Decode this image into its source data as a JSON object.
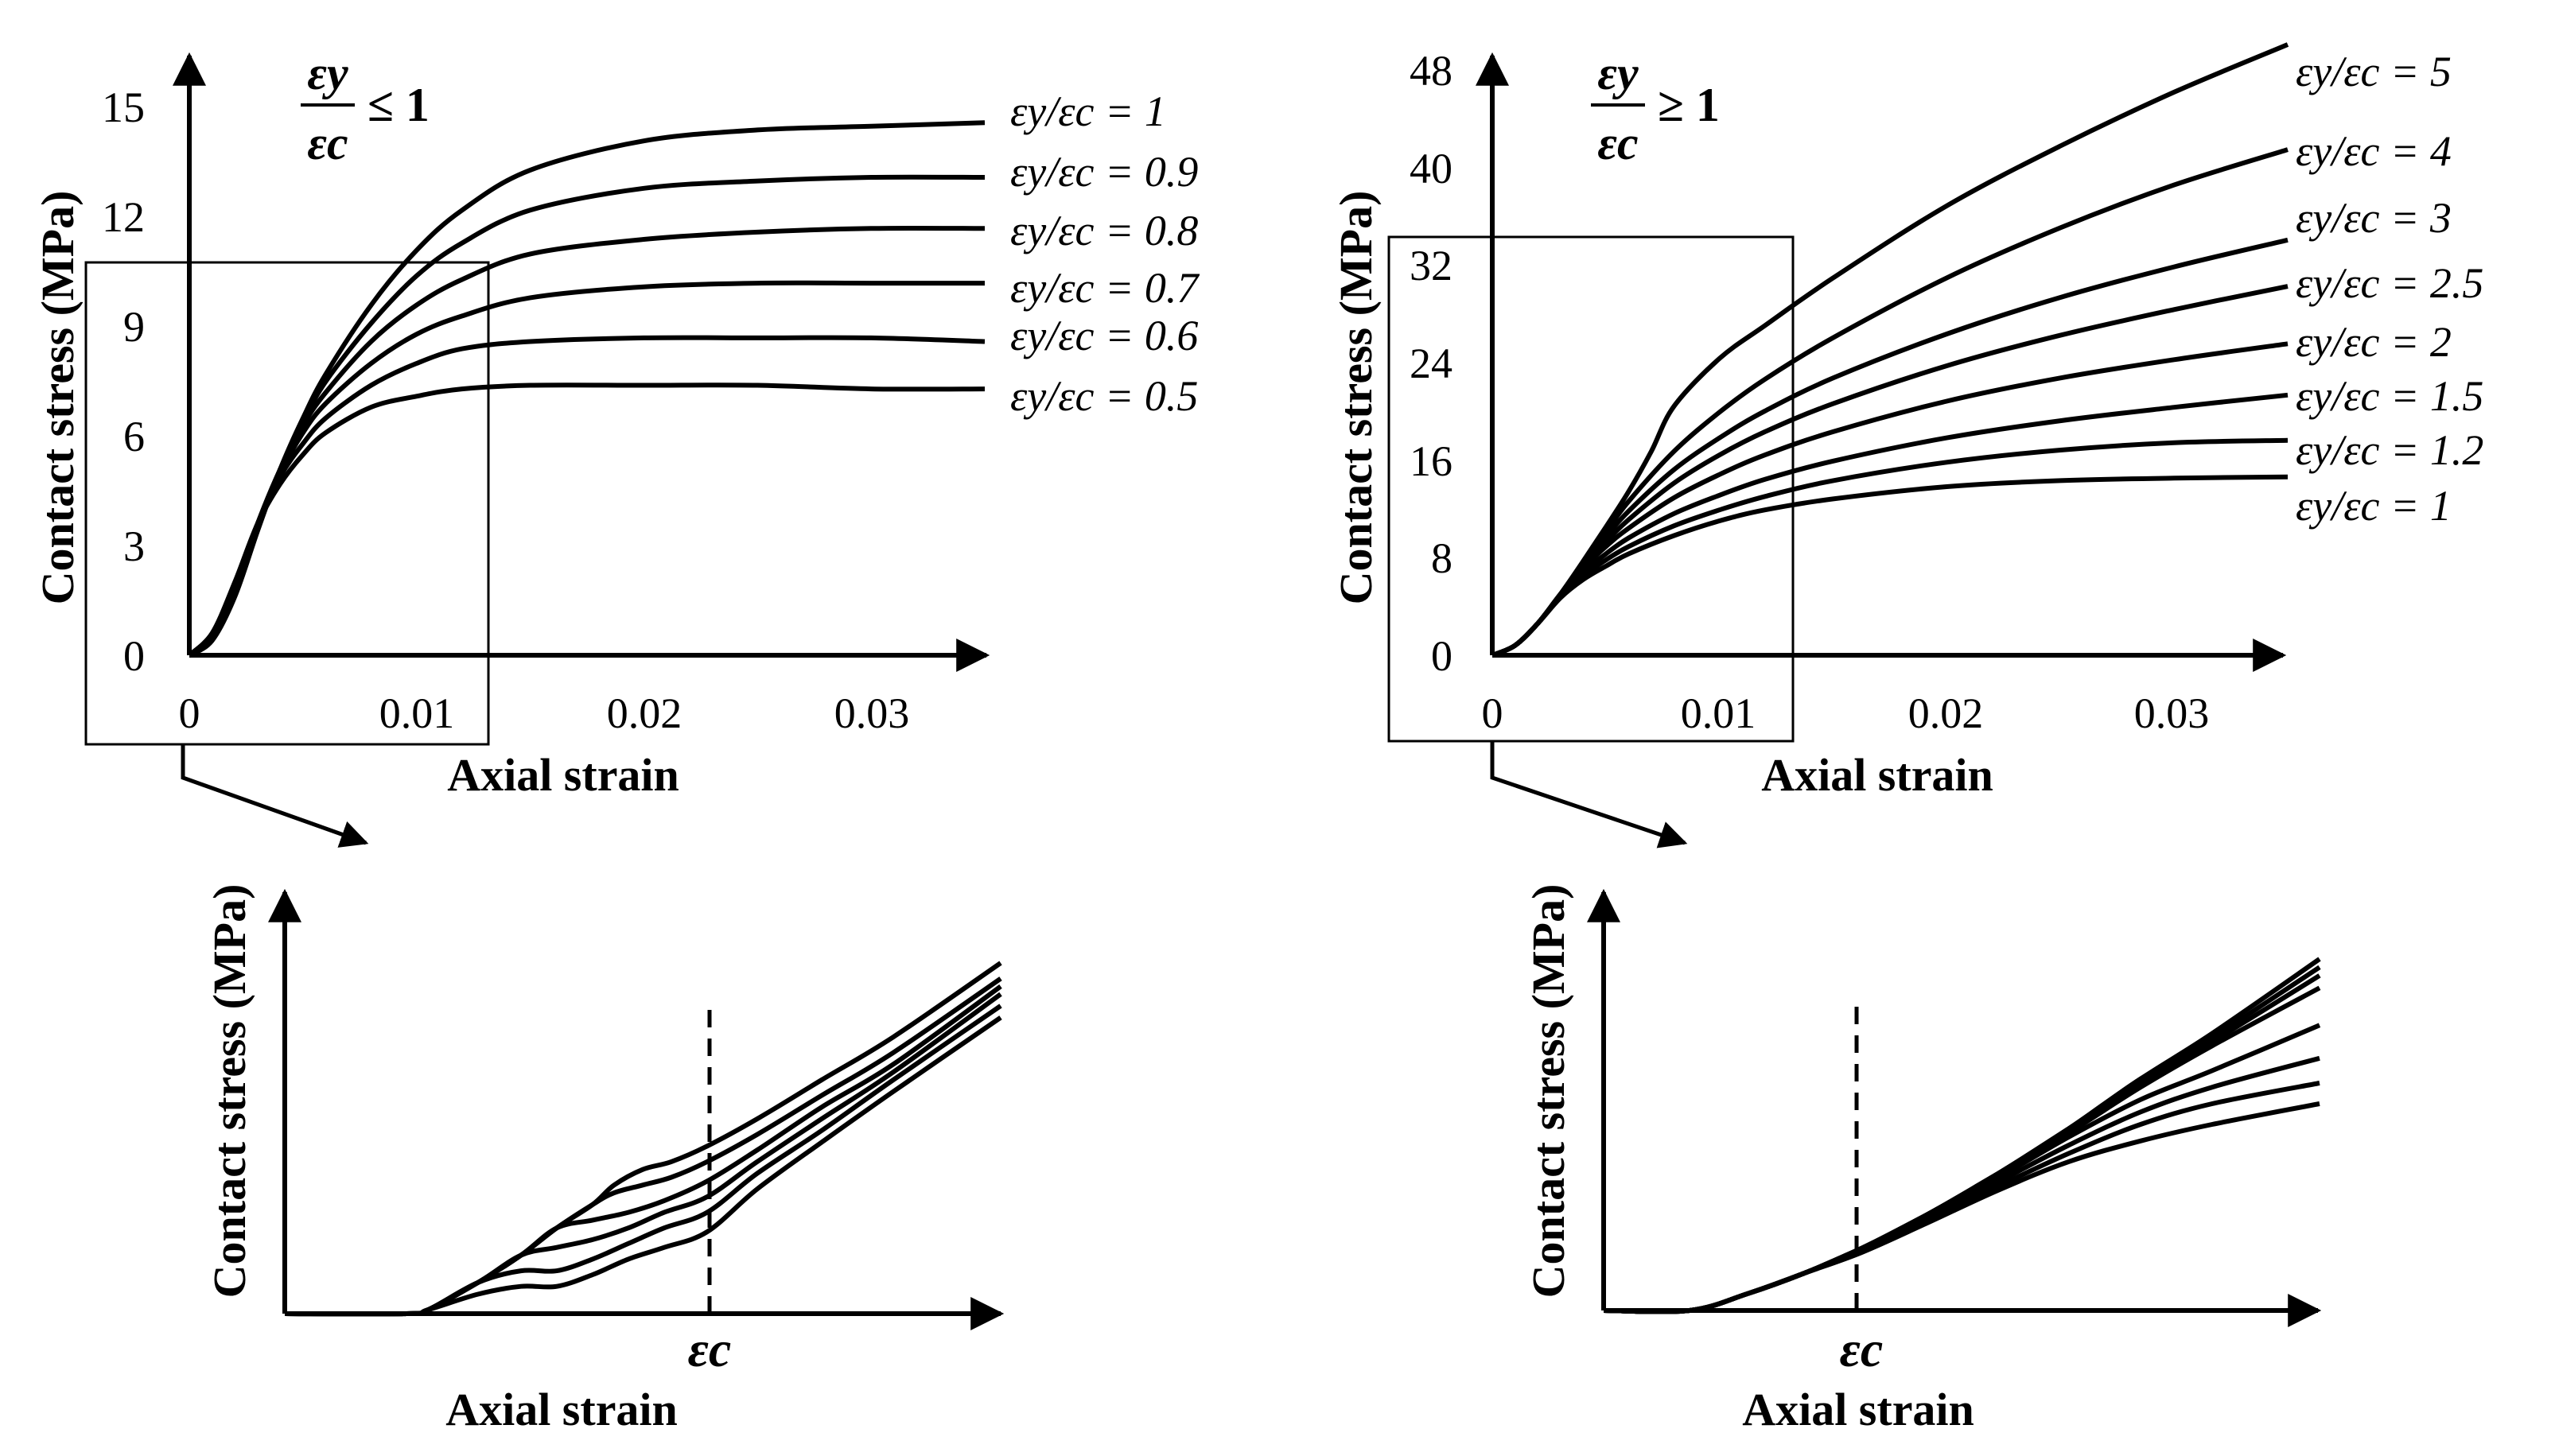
{
  "chart_data": [
    {
      "type": "line",
      "panel": "top-left",
      "title": "",
      "condition": {
        "numerator": "εy",
        "denominator": "εc",
        "relation": "≤ 1"
      },
      "xlabel": "Axial strain",
      "ylabel": "Contact stress (MPa)",
      "xlim": [
        0,
        0.035
      ],
      "ylim": [
        0,
        16
      ],
      "xticks": [
        0,
        0.01,
        0.02,
        0.03
      ],
      "xtick_labels": [
        "0",
        "0.01",
        "0.02",
        "0.03"
      ],
      "yticks": [
        0,
        3,
        6,
        9,
        12,
        15
      ],
      "ytick_labels": [
        "0",
        "3",
        "6",
        "9",
        "12",
        "15"
      ],
      "zoom_box": {
        "x": [
          -0.0045,
          0.013
        ],
        "y": [
          -2.4,
          10.8
        ]
      },
      "legend_placement": "right",
      "series": [
        {
          "name": "εy/εc = 1",
          "x": [
            0,
            0.001,
            0.002,
            0.003,
            0.004,
            0.005,
            0.006,
            0.008,
            0.01,
            0.012,
            0.015,
            0.02,
            0.025,
            0.03,
            0.035
          ],
          "y": [
            0,
            0.4,
            1.6,
            3.4,
            5.1,
            6.5,
            7.7,
            9.6,
            11.1,
            12.2,
            13.3,
            14.1,
            14.4,
            14.5,
            14.6
          ]
        },
        {
          "name": "εy/εc = 0.9",
          "x": [
            0,
            0.001,
            0.002,
            0.003,
            0.004,
            0.005,
            0.006,
            0.008,
            0.01,
            0.012,
            0.015,
            0.02,
            0.025,
            0.03,
            0.035
          ],
          "y": [
            0,
            0.5,
            1.7,
            3.5,
            5.1,
            6.4,
            7.5,
            9.1,
            10.4,
            11.3,
            12.2,
            12.8,
            13.0,
            13.1,
            13.1
          ]
        },
        {
          "name": "εy/εc = 0.8",
          "x": [
            0,
            0.001,
            0.002,
            0.003,
            0.004,
            0.005,
            0.006,
            0.008,
            0.01,
            0.012,
            0.015,
            0.02,
            0.025,
            0.03,
            0.035
          ],
          "y": [
            0,
            0.5,
            1.8,
            3.6,
            5.1,
            6.3,
            7.2,
            8.6,
            9.6,
            10.3,
            11.0,
            11.4,
            11.6,
            11.7,
            11.7
          ]
        },
        {
          "name": "εy/εc = 0.7",
          "x": [
            0,
            0.001,
            0.002,
            0.003,
            0.004,
            0.005,
            0.006,
            0.008,
            0.01,
            0.012,
            0.015,
            0.02,
            0.025,
            0.03,
            0.035
          ],
          "y": [
            0,
            0.5,
            1.8,
            3.6,
            5.0,
            6.1,
            6.9,
            8.0,
            8.8,
            9.3,
            9.8,
            10.1,
            10.2,
            10.2,
            10.2
          ]
        },
        {
          "name": "εy/εc = 0.6",
          "x": [
            0,
            0.001,
            0.002,
            0.003,
            0.004,
            0.005,
            0.006,
            0.008,
            0.01,
            0.012,
            0.015,
            0.02,
            0.025,
            0.03,
            0.035
          ],
          "y": [
            0,
            0.6,
            1.9,
            3.6,
            4.9,
            5.8,
            6.5,
            7.4,
            8.0,
            8.4,
            8.6,
            8.7,
            8.7,
            8.7,
            8.6
          ]
        },
        {
          "name": "εy/εc = 0.5",
          "x": [
            0,
            0.001,
            0.002,
            0.003,
            0.004,
            0.005,
            0.006,
            0.008,
            0.01,
            0.012,
            0.015,
            0.02,
            0.025,
            0.03,
            0.035
          ],
          "y": [
            0,
            0.6,
            2.0,
            3.6,
            4.7,
            5.5,
            6.1,
            6.8,
            7.1,
            7.3,
            7.4,
            7.4,
            7.4,
            7.3,
            7.3
          ]
        }
      ]
    },
    {
      "type": "line",
      "panel": "top-right",
      "title": "",
      "condition": {
        "numerator": "εy",
        "denominator": "εc",
        "relation": "≥ 1"
      },
      "xlabel": "Axial strain",
      "ylabel": "Contact stress (MPa)",
      "xlim": [
        0,
        0.035
      ],
      "ylim": [
        0,
        50
      ],
      "xticks": [
        0,
        0.01,
        0.02,
        0.03
      ],
      "xtick_labels": [
        "0",
        "0.01",
        "0.02",
        "0.03"
      ],
      "yticks": [
        0,
        8,
        16,
        24,
        32,
        40,
        48
      ],
      "ytick_labels": [
        "0",
        "8",
        "16",
        "24",
        "32",
        "40",
        "48"
      ],
      "zoom_box": {
        "x": [
          -0.0045,
          0.013
        ],
        "y": [
          -7.2,
          34.5
        ]
      },
      "legend_placement": "right",
      "series": [
        {
          "name": "εy/εc = 5",
          "x": [
            0,
            0.001,
            0.002,
            0.003,
            0.004,
            0.005,
            0.006,
            0.007,
            0.008,
            0.01,
            0.012,
            0.015,
            0.02,
            0.025,
            0.03,
            0.035
          ],
          "y": [
            0,
            0.8,
            2.6,
            5.0,
            7.7,
            10.5,
            13.4,
            16.7,
            20.4,
            24.3,
            27.0,
            30.9,
            36.8,
            41.7,
            46.1,
            50.0
          ]
        },
        {
          "name": "εy/εc = 4",
          "x": [
            0,
            0.001,
            0.002,
            0.003,
            0.004,
            0.005,
            0.006,
            0.008,
            0.01,
            0.012,
            0.015,
            0.02,
            0.025,
            0.03,
            0.035
          ],
          "y": [
            0,
            0.8,
            2.6,
            5.0,
            7.6,
            10.1,
            12.6,
            16.7,
            19.9,
            22.6,
            26.0,
            30.9,
            35.0,
            38.5,
            41.4
          ]
        },
        {
          "name": "εy/εc = 3",
          "x": [
            0,
            0.001,
            0.002,
            0.003,
            0.004,
            0.005,
            0.006,
            0.008,
            0.01,
            0.012,
            0.015,
            0.02,
            0.025,
            0.03,
            0.035
          ],
          "y": [
            0,
            0.8,
            2.6,
            5.0,
            7.4,
            9.7,
            11.8,
            15.2,
            17.8,
            20.0,
            22.7,
            26.3,
            29.3,
            31.8,
            34.0
          ]
        },
        {
          "name": "εy/εc = 2.5",
          "x": [
            0,
            0.001,
            0.002,
            0.003,
            0.004,
            0.005,
            0.006,
            0.008,
            0.01,
            0.012,
            0.015,
            0.02,
            0.025,
            0.03,
            0.035
          ],
          "y": [
            0,
            0.8,
            2.6,
            5.0,
            7.3,
            9.3,
            11.1,
            14.1,
            16.4,
            18.3,
            20.6,
            23.7,
            26.2,
            28.3,
            30.2
          ]
        },
        {
          "name": "εy/εc = 2",
          "x": [
            0,
            0.001,
            0.002,
            0.003,
            0.004,
            0.005,
            0.006,
            0.008,
            0.01,
            0.012,
            0.015,
            0.02,
            0.025,
            0.03,
            0.035
          ],
          "y": [
            0,
            0.8,
            2.6,
            5.0,
            7.1,
            8.9,
            10.4,
            12.9,
            14.8,
            16.4,
            18.3,
            20.8,
            22.7,
            24.2,
            25.5
          ]
        },
        {
          "name": "εy/εc = 1.5",
          "x": [
            0,
            0.001,
            0.002,
            0.003,
            0.004,
            0.005,
            0.006,
            0.008,
            0.01,
            0.012,
            0.015,
            0.02,
            0.025,
            0.03,
            0.035
          ],
          "y": [
            0,
            0.8,
            2.6,
            4.9,
            6.8,
            8.3,
            9.6,
            11.6,
            13.1,
            14.4,
            15.9,
            17.8,
            19.2,
            20.3,
            21.3
          ]
        },
        {
          "name": "εy/εc = 1.2",
          "x": [
            0,
            0.001,
            0.002,
            0.003,
            0.004,
            0.005,
            0.006,
            0.008,
            0.01,
            0.012,
            0.015,
            0.02,
            0.025,
            0.03,
            0.035
          ],
          "y": [
            0,
            0.8,
            2.6,
            4.8,
            6.5,
            7.8,
            8.9,
            10.6,
            11.9,
            13.0,
            14.3,
            15.8,
            16.8,
            17.4,
            17.6
          ]
        },
        {
          "name": "εy/εc = 1",
          "x": [
            0,
            0.001,
            0.002,
            0.003,
            0.004,
            0.005,
            0.006,
            0.008,
            0.01,
            0.012,
            0.015,
            0.02,
            0.025,
            0.03,
            0.035
          ],
          "y": [
            0,
            0.8,
            2.6,
            4.7,
            6.2,
            7.3,
            8.3,
            9.8,
            11.0,
            11.9,
            12.8,
            13.8,
            14.3,
            14.5,
            14.6
          ]
        }
      ]
    },
    {
      "type": "line",
      "panel": "bottom-left",
      "title": "",
      "xlabel": "Axial strain",
      "ylabel": "Contact stress (MPa)",
      "xlim": [
        0,
        1
      ],
      "ylim": [
        0,
        1
      ],
      "marker": {
        "x": 0.59,
        "label": "εc",
        "style": "dashed"
      },
      "series": [
        {
          "x": [
            0,
            0.17,
            0.2,
            0.27,
            0.33,
            0.38,
            0.43,
            0.46,
            0.5,
            0.54,
            0.59,
            0.66,
            0.75,
            0.85,
            1.0
          ],
          "y": [
            0,
            0,
            0.01,
            0.08,
            0.15,
            0.22,
            0.28,
            0.33,
            0.37,
            0.39,
            0.43,
            0.5,
            0.6,
            0.71,
            0.9
          ]
        },
        {
          "x": [
            0,
            0.17,
            0.2,
            0.27,
            0.33,
            0.38,
            0.43,
            0.46,
            0.5,
            0.54,
            0.59,
            0.66,
            0.75,
            0.85,
            1.0
          ],
          "y": [
            0,
            0,
            0.01,
            0.08,
            0.15,
            0.22,
            0.28,
            0.31,
            0.33,
            0.35,
            0.39,
            0.46,
            0.56,
            0.67,
            0.86
          ]
        },
        {
          "x": [
            0,
            0.17,
            0.2,
            0.27,
            0.33,
            0.38,
            0.43,
            0.48,
            0.53,
            0.59,
            0.66,
            0.75,
            0.85,
            1.0
          ],
          "y": [
            0,
            0,
            0.01,
            0.08,
            0.15,
            0.22,
            0.24,
            0.26,
            0.29,
            0.34,
            0.42,
            0.53,
            0.64,
            0.84
          ]
        },
        {
          "x": [
            0,
            0.17,
            0.2,
            0.27,
            0.33,
            0.38,
            0.43,
            0.48,
            0.53,
            0.59,
            0.66,
            0.75,
            0.85,
            1.0
          ],
          "y": [
            0,
            0,
            0.01,
            0.08,
            0.15,
            0.17,
            0.19,
            0.22,
            0.26,
            0.3,
            0.39,
            0.5,
            0.62,
            0.82
          ]
        },
        {
          "x": [
            0,
            0.17,
            0.2,
            0.27,
            0.33,
            0.38,
            0.43,
            0.48,
            0.53,
            0.59,
            0.66,
            0.75,
            0.85,
            1.0
          ],
          "y": [
            0,
            0,
            0.01,
            0.08,
            0.11,
            0.11,
            0.14,
            0.18,
            0.22,
            0.26,
            0.36,
            0.47,
            0.6,
            0.79
          ]
        },
        {
          "x": [
            0,
            0.17,
            0.2,
            0.27,
            0.33,
            0.38,
            0.43,
            0.48,
            0.53,
            0.59,
            0.66,
            0.75,
            0.85,
            1.0
          ],
          "y": [
            0,
            0,
            0.01,
            0.05,
            0.07,
            0.07,
            0.1,
            0.14,
            0.17,
            0.21,
            0.32,
            0.44,
            0.57,
            0.76
          ]
        }
      ]
    },
    {
      "type": "line",
      "panel": "bottom-right",
      "title": "",
      "xlabel": "Axial strain",
      "ylabel": "Contact stress (MPa)",
      "xlim": [
        0,
        1
      ],
      "ylim": [
        0,
        1
      ],
      "marker": {
        "x": 0.36,
        "label": "εc",
        "style": "dashed"
      },
      "series": [
        {
          "x": [
            0,
            0.12,
            0.2,
            0.28,
            0.36,
            0.45,
            0.55,
            0.65,
            0.75,
            0.85,
            1.0
          ],
          "y": [
            0,
            0,
            0.04,
            0.09,
            0.15,
            0.23,
            0.33,
            0.44,
            0.56,
            0.67,
            0.85
          ]
        },
        {
          "x": [
            0,
            0.12,
            0.2,
            0.28,
            0.36,
            0.45,
            0.55,
            0.65,
            0.75,
            0.85,
            1.0
          ],
          "y": [
            0,
            0,
            0.04,
            0.09,
            0.15,
            0.23,
            0.33,
            0.44,
            0.56,
            0.66,
            0.83
          ]
        },
        {
          "x": [
            0,
            0.12,
            0.2,
            0.28,
            0.36,
            0.45,
            0.55,
            0.65,
            0.75,
            0.85,
            1.0
          ],
          "y": [
            0,
            0,
            0.04,
            0.09,
            0.15,
            0.23,
            0.33,
            0.44,
            0.55,
            0.65,
            0.81
          ]
        },
        {
          "x": [
            0,
            0.12,
            0.2,
            0.28,
            0.36,
            0.45,
            0.55,
            0.65,
            0.75,
            0.85,
            1.0
          ],
          "y": [
            0,
            0,
            0.04,
            0.09,
            0.15,
            0.23,
            0.33,
            0.43,
            0.54,
            0.64,
            0.78
          ]
        },
        {
          "x": [
            0,
            0.12,
            0.2,
            0.28,
            0.36,
            0.45,
            0.55,
            0.65,
            0.75,
            0.85,
            1.0
          ],
          "y": [
            0,
            0,
            0.04,
            0.09,
            0.15,
            0.23,
            0.32,
            0.42,
            0.51,
            0.58,
            0.69
          ]
        },
        {
          "x": [
            0,
            0.12,
            0.2,
            0.28,
            0.36,
            0.45,
            0.55,
            0.65,
            0.75,
            0.85,
            1.0
          ],
          "y": [
            0,
            0,
            0.04,
            0.09,
            0.15,
            0.22,
            0.31,
            0.4,
            0.48,
            0.54,
            0.61
          ]
        },
        {
          "x": [
            0,
            0.12,
            0.2,
            0.28,
            0.36,
            0.45,
            0.55,
            0.65,
            0.75,
            0.85,
            1.0
          ],
          "y": [
            0,
            0,
            0.04,
            0.09,
            0.15,
            0.22,
            0.3,
            0.38,
            0.45,
            0.5,
            0.55
          ]
        },
        {
          "x": [
            0,
            0.12,
            0.2,
            0.28,
            0.36,
            0.45,
            0.55,
            0.65,
            0.75,
            0.85,
            1.0
          ],
          "y": [
            0,
            0,
            0.04,
            0.09,
            0.14,
            0.21,
            0.29,
            0.36,
            0.41,
            0.45,
            0.5
          ]
        }
      ]
    }
  ]
}
